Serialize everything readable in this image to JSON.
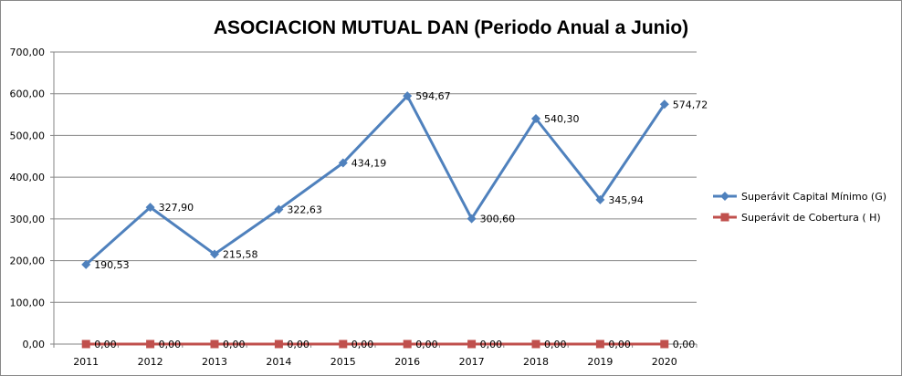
{
  "chart_data": {
    "type": "line",
    "title": "ASOCIACION MUTUAL DAN (Periodo Anual a Junio)",
    "categories": [
      "2011",
      "2012",
      "2013",
      "2014",
      "2015",
      "2016",
      "2017",
      "2018",
      "2019",
      "2020"
    ],
    "y_ticks": [
      "0,00",
      "100,00",
      "200,00",
      "300,00",
      "400,00",
      "500,00",
      "600,00",
      "700,00"
    ],
    "ylim": [
      0,
      700
    ],
    "grid": true,
    "legend_position": "right",
    "series": [
      {
        "name": "Superávit Capital Mínimo  (G)",
        "color": "#4f81bd",
        "marker": "diamond",
        "values": [
          190.53,
          327.9,
          215.58,
          322.63,
          434.19,
          594.67,
          300.6,
          540.3,
          345.94,
          574.72
        ],
        "labels": [
          "190,53",
          "327,90",
          "215,58",
          "322,63",
          "434,19",
          "594,67",
          "300,60",
          "540,30",
          "345,94",
          "574,72"
        ]
      },
      {
        "name": "Superávit de Cobertura ( H)",
        "color": "#c0504d",
        "marker": "square",
        "values": [
          0,
          0,
          0,
          0,
          0,
          0,
          0,
          0,
          0,
          0
        ],
        "labels": [
          "0,00",
          "0,00",
          "0,00",
          "0,00",
          "0,00",
          "0,00",
          "0,00",
          "0,00",
          "0,00",
          "0,00"
        ]
      }
    ]
  }
}
